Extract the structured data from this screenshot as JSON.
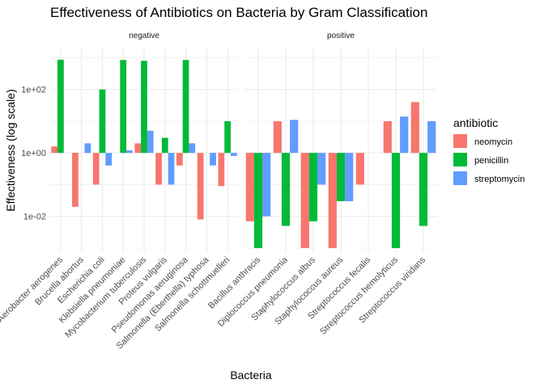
{
  "chart_data": {
    "type": "bar",
    "title": "Effectiveness of Antibiotics on Bacteria by Gram Classification",
    "xlabel": "Bacteria",
    "ylabel": "Effectiveness (log scale)",
    "y_scale": "log",
    "ylim": [
      0.0007,
      2200
    ],
    "y_ticks": [
      {
        "value": 0.01,
        "label": "1e-02"
      },
      {
        "value": 1,
        "label": "1e+00"
      },
      {
        "value": 100,
        "label": "1e+02"
      }
    ],
    "grid": true,
    "legend": {
      "title": "antibiotic",
      "position": "right",
      "entries": [
        {
          "name": "neomycin",
          "color": "#F8766D"
        },
        {
          "name": "penicillin",
          "color": "#00BA38"
        },
        {
          "name": "streptomycin",
          "color": "#619CFF"
        }
      ]
    },
    "facets": [
      {
        "label": "negative",
        "categories": [
          "Aerobacter aerogenes",
          "Brucella abortus",
          "Escherichia coli",
          "Klebsiella pneumoniae",
          "Mycobacterium tuberculosis",
          "Proteus vulgaris",
          "Pseudomonas aeruginosa",
          "Salmonella (Eberthella) typhosa",
          "Salmonella schottmuelleri"
        ],
        "series": [
          {
            "name": "neomycin",
            "values": [
              1.6,
              0.02,
              0.1,
              1,
              2,
              0.1,
              0.4,
              0.008,
              0.09
            ]
          },
          {
            "name": "penicillin",
            "values": [
              870,
              1,
              100,
              850,
              800,
              3,
              850,
              1,
              10
            ]
          },
          {
            "name": "streptomycin",
            "values": [
              1,
              2,
              0.4,
              1.2,
              5,
              0.1,
              2,
              0.4,
              0.8
            ]
          }
        ]
      },
      {
        "label": "positive",
        "categories": [
          "Bacillus anthracis",
          "Diplococcus pneumonia",
          "Staphylococcus albus",
          "Staphylococcus aureus",
          "Streptococcus fecalis",
          "Streptococcus hemolyticus",
          "Streptococcus viridans"
        ],
        "series": [
          {
            "name": "neomycin",
            "values": [
              0.007,
              10,
              0.001,
              0.001,
              0.1,
              10,
              40
            ]
          },
          {
            "name": "penicillin",
            "values": [
              0.001,
              0.005,
              0.007,
              0.03,
              1,
              0.001,
              0.005
            ]
          },
          {
            "name": "streptomycin",
            "values": [
              0.01,
              11,
              0.1,
              0.03,
              1,
              14,
              10
            ]
          }
        ]
      }
    ]
  }
}
